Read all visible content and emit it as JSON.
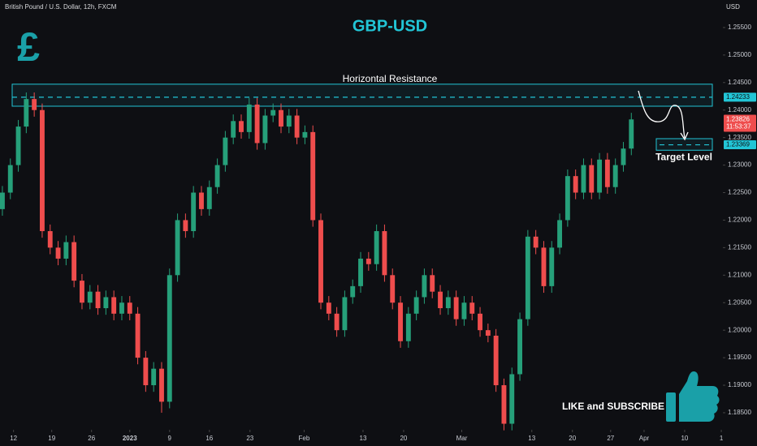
{
  "chart_data": {
    "type": "candlestick",
    "header": "British Pound / U.S. Dollar, 12h, FXCM",
    "title": "GBP-USD",
    "icon": "£",
    "currency": "USD",
    "resistance_label": "Horizontal Resistance",
    "target_label": "Target Level",
    "cta": "LIKE and SUBSCRIBE",
    "resistance_zone": [
      1.2407,
      1.2447
    ],
    "resistance_level": {
      "value": 1.24233,
      "label": "1.24233"
    },
    "target_zone": [
      1.2327,
      1.2348
    ],
    "target_level": {
      "value": 1.23369,
      "label": "1.23369"
    },
    "last_price": {
      "value": 1.23826,
      "label": "1.23826"
    },
    "countdown": "11:53:37",
    "up_color": "#26a07a",
    "down_color": "#ef4d4d",
    "accent_color": "#22c5d6",
    "xlim": [
      -0.3,
      90.5
    ],
    "ylim": [
      1.1819,
      1.26
    ],
    "xticks": [
      {
        "value": 1.4,
        "label": "12"
      },
      {
        "value": 6.2,
        "label": "19"
      },
      {
        "value": 11.2,
        "label": "26"
      },
      {
        "value": 16.0,
        "label": "2023"
      },
      {
        "value": 21.0,
        "label": "9"
      },
      {
        "value": 26.0,
        "label": "16"
      },
      {
        "value": 31.1,
        "label": "23"
      },
      {
        "value": 37.9,
        "label": "Feb"
      },
      {
        "value": 45.3,
        "label": "13"
      },
      {
        "value": 50.4,
        "label": "20"
      },
      {
        "value": 57.7,
        "label": "Mar"
      },
      {
        "value": 66.5,
        "label": "13"
      },
      {
        "value": 71.6,
        "label": "20"
      },
      {
        "value": 76.4,
        "label": "27"
      },
      {
        "value": 80.6,
        "label": "Apr"
      },
      {
        "value": 85.7,
        "label": "10"
      },
      {
        "value": 90.3,
        "label": "1"
      }
    ],
    "yticks": [
      {
        "value": 1.255,
        "label": "1.25500"
      },
      {
        "value": 1.25,
        "label": "1.25000"
      },
      {
        "value": 1.245,
        "label": "1.24500"
      },
      {
        "value": 1.24,
        "label": "1.24000"
      },
      {
        "value": 1.235,
        "label": "1.23500"
      },
      {
        "value": 1.23,
        "label": "1.23000"
      },
      {
        "value": 1.225,
        "label": "1.22500"
      },
      {
        "value": 1.22,
        "label": "1.22000"
      },
      {
        "value": 1.215,
        "label": "1.21500"
      },
      {
        "value": 1.21,
        "label": "1.21000"
      },
      {
        "value": 1.205,
        "label": "1.20500"
      },
      {
        "value": 1.2,
        "label": "1.20000"
      },
      {
        "value": 1.195,
        "label": "1.19500"
      },
      {
        "value": 1.19,
        "label": "1.19000"
      },
      {
        "value": 1.185,
        "label": "1.18500"
      }
    ],
    "open": [
      1.222,
      1.225,
      1.23,
      1.237,
      1.242,
      1.24,
      1.218,
      1.215,
      1.213,
      1.216,
      1.209,
      1.205,
      1.207,
      1.204,
      1.206,
      1.203,
      1.205,
      1.203,
      1.195,
      1.19,
      1.193,
      1.187,
      1.21,
      1.22,
      1.218,
      1.225,
      1.222,
      1.226,
      1.23,
      1.235,
      1.238,
      1.236,
      1.241,
      1.234,
      1.239,
      1.24,
      1.237,
      1.239,
      1.235,
      1.236,
      1.22,
      1.205,
      1.203,
      1.2,
      1.206,
      1.208,
      1.213,
      1.212,
      1.218,
      1.21,
      1.205,
      1.198,
      1.203,
      1.206,
      1.21,
      1.207,
      1.204,
      1.206,
      1.202,
      1.205,
      1.203,
      1.2,
      1.199,
      1.19,
      1.183,
      1.192,
      1.202,
      1.217,
      1.215,
      1.208,
      1.215,
      1.22,
      1.228,
      1.225,
      1.23,
      1.225,
      1.231,
      1.226,
      1.23,
      1.233
    ],
    "high": [
      1.2262,
      1.2312,
      1.2382,
      1.2432,
      1.2432,
      1.2412,
      1.2192,
      1.2162,
      1.2172,
      1.2172,
      1.2102,
      1.2082,
      1.2082,
      1.2072,
      1.2072,
      1.2062,
      1.2062,
      1.2042,
      1.1962,
      1.1942,
      1.1942,
      1.2112,
      1.2212,
      1.2212,
      1.2262,
      1.2262,
      1.2272,
      1.2312,
      1.2362,
      1.2392,
      1.2392,
      1.2422,
      1.2422,
      1.2402,
      1.2412,
      1.2412,
      1.2402,
      1.2402,
      1.2372,
      1.2372,
      1.2212,
      1.2062,
      1.2042,
      1.2072,
      1.2092,
      1.2142,
      1.2142,
      1.2192,
      1.2192,
      1.2112,
      1.2062,
      1.2042,
      1.2072,
      1.2112,
      1.2112,
      1.2082,
      1.2072,
      1.2072,
      1.2062,
      1.2062,
      1.2042,
      1.2012,
      1.2002,
      1.1912,
      1.1932,
      1.2032,
      1.2182,
      1.2182,
      1.2162,
      1.2162,
      1.2212,
      1.2292,
      1.2292,
      1.2312,
      1.2312,
      1.2322,
      1.2322,
      1.2312,
      1.2342,
      1.2395
    ],
    "low": [
      1.2208,
      1.2238,
      1.2288,
      1.2358,
      1.2388,
      1.2168,
      1.2138,
      1.2118,
      1.2118,
      1.2078,
      1.2038,
      1.2038,
      1.2028,
      1.2028,
      1.2018,
      1.2018,
      1.2018,
      1.1938,
      1.1888,
      1.1888,
      1.185,
      1.1858,
      1.2088,
      1.2168,
      1.2168,
      1.2208,
      1.2208,
      1.2248,
      1.2288,
      1.2338,
      1.2348,
      1.2348,
      1.2328,
      1.2328,
      1.2378,
      1.2358,
      1.2358,
      1.2338,
      1.2338,
      1.2188,
      1.2038,
      1.2018,
      1.1988,
      1.1988,
      1.2048,
      1.2068,
      1.2108,
      1.2108,
      1.2088,
      1.2038,
      1.1968,
      1.1968,
      1.2018,
      1.2048,
      1.2058,
      1.2028,
      1.2028,
      1.2008,
      1.2008,
      1.2018,
      1.1988,
      1.1978,
      1.1888,
      1.1818,
      1.1818,
      1.1908,
      1.2008,
      1.2138,
      1.2068,
      1.2068,
      1.2138,
      1.2188,
      1.2238,
      1.2238,
      1.2238,
      1.2238,
      1.2248,
      1.2248,
      1.2288,
      1.2318
    ],
    "close": [
      1.225,
      1.23,
      1.237,
      1.242,
      1.24,
      1.218,
      1.215,
      1.213,
      1.216,
      1.209,
      1.205,
      1.207,
      1.204,
      1.206,
      1.203,
      1.205,
      1.203,
      1.195,
      1.19,
      1.193,
      1.187,
      1.21,
      1.22,
      1.218,
      1.225,
      1.222,
      1.226,
      1.23,
      1.235,
      1.238,
      1.236,
      1.241,
      1.234,
      1.239,
      1.24,
      1.237,
      1.239,
      1.235,
      1.236,
      1.22,
      1.205,
      1.203,
      1.2,
      1.206,
      1.208,
      1.213,
      1.212,
      1.218,
      1.21,
      1.205,
      1.198,
      1.203,
      1.206,
      1.21,
      1.207,
      1.204,
      1.206,
      1.202,
      1.205,
      1.203,
      1.2,
      1.199,
      1.19,
      1.183,
      1.192,
      1.202,
      1.217,
      1.215,
      1.208,
      1.215,
      1.22,
      1.228,
      1.225,
      1.23,
      1.225,
      1.231,
      1.226,
      1.23,
      1.233,
      1.2383
    ]
  }
}
